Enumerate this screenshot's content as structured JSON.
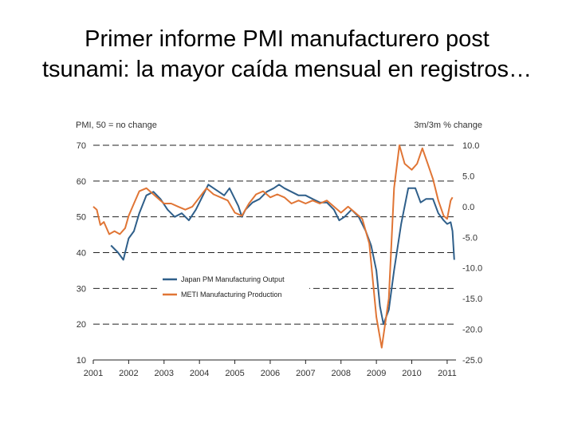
{
  "slide": {
    "title_line1": "Primer informe PMI manufacturero post",
    "title_line2": "tsunami: la mayor caída mensual en registros…"
  },
  "chart_data": {
    "type": "line",
    "left_axis_label": "PMI, 50 = no change",
    "right_axis_label": "3m/3m % change",
    "y_left": {
      "range": [
        10,
        70
      ],
      "ticks": [
        "10",
        "20",
        "30",
        "40",
        "50",
        "60",
        "70"
      ]
    },
    "y_right": {
      "range": [
        -25,
        10
      ],
      "ticks": [
        "-25.0",
        "-20.0",
        "-15.0",
        "-10.0",
        "-5.0",
        "0.0",
        "5.0",
        "10.0"
      ]
    },
    "x": {
      "range": [
        2001,
        2011.25
      ],
      "ticks": [
        "2001",
        "2002",
        "2003",
        "2004",
        "2005",
        "2006",
        "2007",
        "2008",
        "2009",
        "2010",
        "2011"
      ]
    },
    "grid": "dashed horizontal lines at 20, 30, 40, 50, 60, 70",
    "legend_position": "lower-left inside plot",
    "series": [
      {
        "name": "Japan PM Manufacturing Output",
        "axis": "left",
        "color": "#2f5f8a",
        "points": [
          [
            2001.5,
            42
          ],
          [
            2001.7,
            40
          ],
          [
            2001.85,
            38
          ],
          [
            2002.0,
            44
          ],
          [
            2002.15,
            46
          ],
          [
            2002.3,
            51
          ],
          [
            2002.5,
            56
          ],
          [
            2002.7,
            57
          ],
          [
            2002.9,
            55
          ],
          [
            2003.1,
            52
          ],
          [
            2003.3,
            50
          ],
          [
            2003.5,
            51
          ],
          [
            2003.7,
            49
          ],
          [
            2003.9,
            52
          ],
          [
            2004.1,
            56
          ],
          [
            2004.25,
            59
          ],
          [
            2004.4,
            58
          ],
          [
            2004.55,
            57
          ],
          [
            2004.7,
            56
          ],
          [
            2004.85,
            58
          ],
          [
            2005.0,
            55
          ],
          [
            2005.1,
            53
          ],
          [
            2005.2,
            50
          ],
          [
            2005.3,
            52
          ],
          [
            2005.5,
            54
          ],
          [
            2005.7,
            55
          ],
          [
            2005.9,
            57
          ],
          [
            2006.1,
            58
          ],
          [
            2006.25,
            59
          ],
          [
            2006.4,
            58
          ],
          [
            2006.6,
            57
          ],
          [
            2006.8,
            56
          ],
          [
            2007.0,
            56
          ],
          [
            2007.2,
            55
          ],
          [
            2007.4,
            54
          ],
          [
            2007.6,
            54
          ],
          [
            2007.8,
            52
          ],
          [
            2007.95,
            49
          ],
          [
            2008.1,
            50
          ],
          [
            2008.3,
            52
          ],
          [
            2008.5,
            50
          ],
          [
            2008.7,
            46
          ],
          [
            2008.85,
            42
          ],
          [
            2009.0,
            35
          ],
          [
            2009.1,
            25
          ],
          [
            2009.2,
            20
          ],
          [
            2009.35,
            24
          ],
          [
            2009.5,
            35
          ],
          [
            2009.7,
            48
          ],
          [
            2009.9,
            58
          ],
          [
            2010.1,
            58
          ],
          [
            2010.25,
            54
          ],
          [
            2010.4,
            55
          ],
          [
            2010.6,
            55
          ],
          [
            2010.75,
            51
          ],
          [
            2010.9,
            49
          ],
          [
            2011.0,
            48
          ],
          [
            2011.1,
            48.5
          ],
          [
            2011.15,
            46
          ],
          [
            2011.2,
            38
          ]
        ]
      },
      {
        "name": "METI Manufacturing Production",
        "axis": "right",
        "color": "#e07535",
        "points": [
          [
            2001.0,
            0.0
          ],
          [
            2001.1,
            -0.5
          ],
          [
            2001.2,
            -3.0
          ],
          [
            2001.3,
            -2.5
          ],
          [
            2001.45,
            -4.5
          ],
          [
            2001.6,
            -4.0
          ],
          [
            2001.75,
            -4.5
          ],
          [
            2001.9,
            -3.5
          ],
          [
            2002.0,
            -1.5
          ],
          [
            2002.15,
            0.5
          ],
          [
            2002.3,
            2.5
          ],
          [
            2002.5,
            3.0
          ],
          [
            2002.7,
            2.0
          ],
          [
            2002.9,
            1.0
          ],
          [
            2003.0,
            0.5
          ],
          [
            2003.2,
            0.5
          ],
          [
            2003.4,
            0.0
          ],
          [
            2003.6,
            -0.5
          ],
          [
            2003.8,
            0.0
          ],
          [
            2004.0,
            1.5
          ],
          [
            2004.2,
            3.0
          ],
          [
            2004.4,
            2.0
          ],
          [
            2004.6,
            1.5
          ],
          [
            2004.8,
            1.0
          ],
          [
            2005.0,
            -1.0
          ],
          [
            2005.2,
            -1.5
          ],
          [
            2005.4,
            0.5
          ],
          [
            2005.6,
            2.0
          ],
          [
            2005.8,
            2.5
          ],
          [
            2006.0,
            1.5
          ],
          [
            2006.2,
            2.0
          ],
          [
            2006.4,
            1.5
          ],
          [
            2006.6,
            0.5
          ],
          [
            2006.8,
            1.0
          ],
          [
            2007.0,
            0.5
          ],
          [
            2007.2,
            1.0
          ],
          [
            2007.4,
            0.5
          ],
          [
            2007.6,
            1.0
          ],
          [
            2007.8,
            0.0
          ],
          [
            2008.0,
            -1.0
          ],
          [
            2008.2,
            0.0
          ],
          [
            2008.4,
            -1.0
          ],
          [
            2008.6,
            -2.0
          ],
          [
            2008.8,
            -6.0
          ],
          [
            2009.0,
            -18.0
          ],
          [
            2009.15,
            -23.0
          ],
          [
            2009.35,
            -15.0
          ],
          [
            2009.5,
            3.0
          ],
          [
            2009.65,
            10.0
          ],
          [
            2009.8,
            7.0
          ],
          [
            2010.0,
            6.0
          ],
          [
            2010.15,
            7.0
          ],
          [
            2010.3,
            9.5
          ],
          [
            2010.45,
            7.0
          ],
          [
            2010.6,
            4.5
          ],
          [
            2010.75,
            1.0
          ],
          [
            2010.9,
            -1.5
          ],
          [
            2011.0,
            -2.0
          ],
          [
            2011.1,
            1.0
          ],
          [
            2011.15,
            1.5
          ]
        ]
      }
    ]
  }
}
